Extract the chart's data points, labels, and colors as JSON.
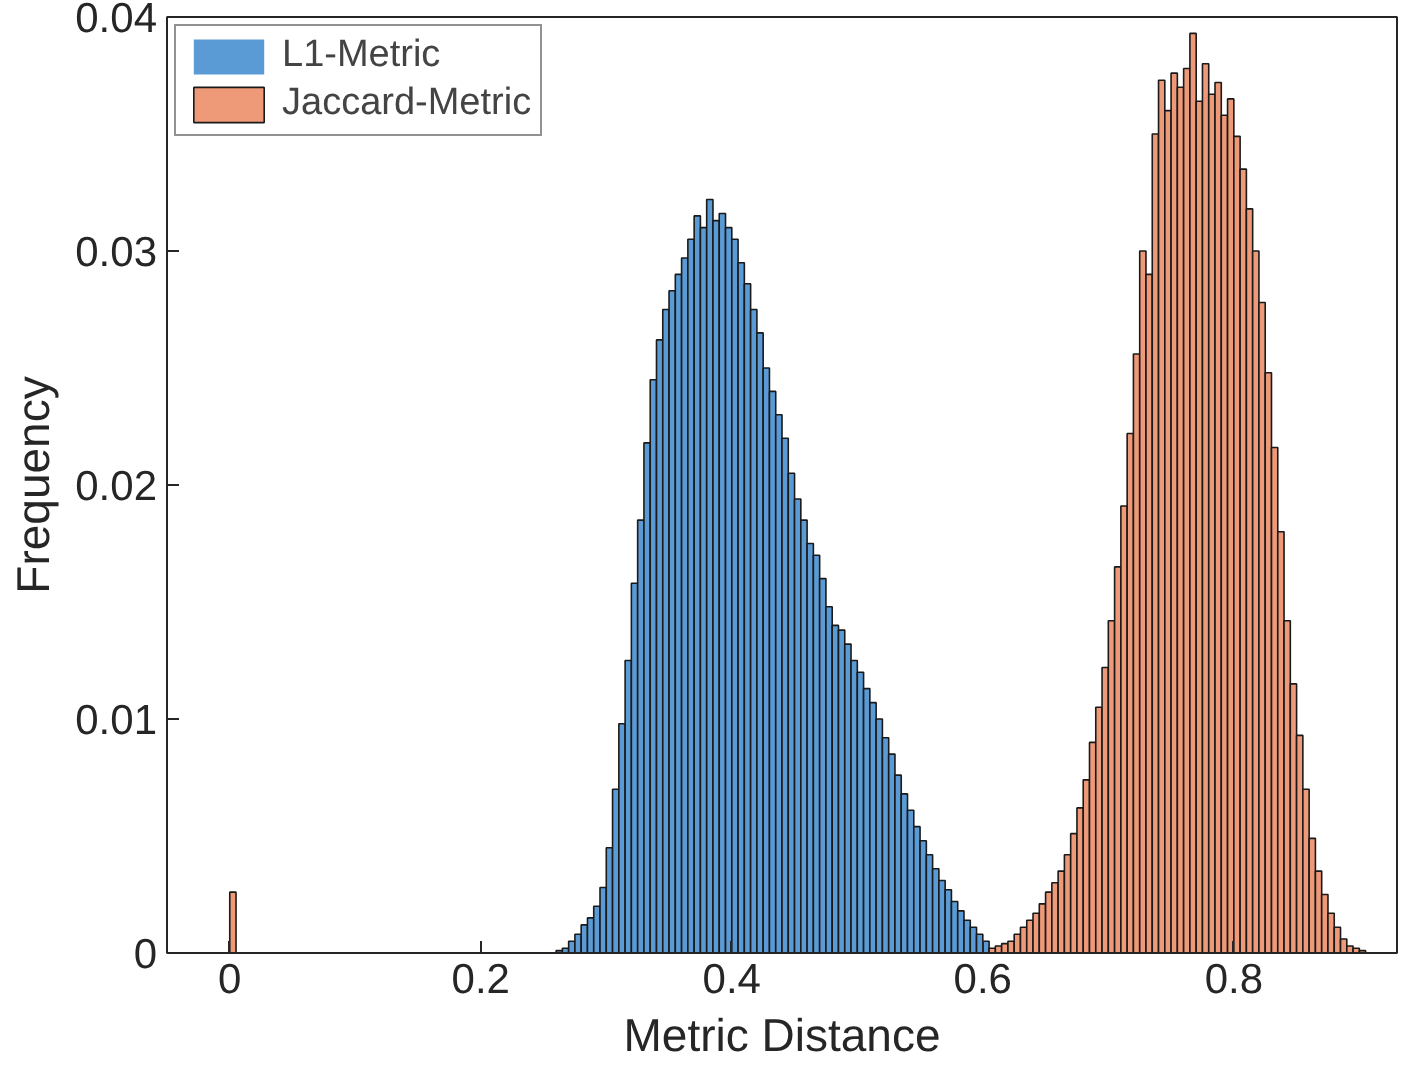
{
  "chart_data": {
    "type": "histogram",
    "xlabel": "Metric Distance",
    "ylabel": "Frequency",
    "xlim": [
      -0.05,
      0.93
    ],
    "ylim": [
      0,
      0.04
    ],
    "xticks": [
      0,
      0.2,
      0.4,
      0.6,
      0.8
    ],
    "yticks": [
      0,
      0.01,
      0.02,
      0.03,
      0.04
    ],
    "grid": false,
    "legend": "top left",
    "bins": [
      0,
      0.005,
      0.01,
      0.015,
      0.02,
      0.025,
      0.03,
      0.035,
      0.04,
      0.045,
      0.05,
      0.055,
      0.06,
      0.065,
      0.07,
      0.075,
      0.08,
      0.085,
      0.09,
      0.095,
      0.1,
      0.105,
      0.11,
      0.115,
      0.12,
      0.125,
      0.13,
      0.135,
      0.14,
      0.145,
      0.15,
      0.155,
      0.16,
      0.165,
      0.17,
      0.175,
      0.18,
      0.185,
      0.19,
      0.195,
      0.2,
      0.205,
      0.21,
      0.215,
      0.22,
      0.225,
      0.23,
      0.235,
      0.24,
      0.245,
      0.25,
      0.255,
      0.26,
      0.265,
      0.27,
      0.275,
      0.28,
      0.285,
      0.29,
      0.295,
      0.3,
      0.305,
      0.31,
      0.315,
      0.32,
      0.325,
      0.33,
      0.335,
      0.34,
      0.345,
      0.35,
      0.355,
      0.36,
      0.365,
      0.37,
      0.375,
      0.38,
      0.385,
      0.39,
      0.395,
      0.4,
      0.405,
      0.41,
      0.415,
      0.42,
      0.425,
      0.43,
      0.435,
      0.44,
      0.445,
      0.45,
      0.455,
      0.46,
      0.465,
      0.47,
      0.475,
      0.48,
      0.485,
      0.49,
      0.495,
      0.5,
      0.505,
      0.51,
      0.515,
      0.52,
      0.525,
      0.53,
      0.535,
      0.54,
      0.545,
      0.55,
      0.555,
      0.56,
      0.565,
      0.57,
      0.575,
      0.58,
      0.585,
      0.59,
      0.595,
      0.6,
      0.605,
      0.61,
      0.615,
      0.62,
      0.625,
      0.63,
      0.635,
      0.64,
      0.645,
      0.65,
      0.655,
      0.66,
      0.665,
      0.67,
      0.675,
      0.68,
      0.685,
      0.69,
      0.695,
      0.7,
      0.705,
      0.71,
      0.715,
      0.72,
      0.725,
      0.73,
      0.735,
      0.74,
      0.745,
      0.75,
      0.755,
      0.76,
      0.765,
      0.77,
      0.775,
      0.78,
      0.785,
      0.79,
      0.795,
      0.8,
      0.805,
      0.81,
      0.815,
      0.82,
      0.825,
      0.83,
      0.835,
      0.84,
      0.845,
      0.85,
      0.855,
      0.86,
      0.865,
      0.87,
      0.875,
      0.88,
      0.885,
      0.89,
      0.895,
      0.9,
      0.905
    ],
    "series": [
      {
        "name": "L1-Metric",
        "color": "#5b9bd5",
        "values": [
          0,
          0,
          0,
          0,
          0,
          0,
          0,
          0,
          0,
          0,
          0,
          0,
          0,
          0,
          0,
          0,
          0,
          0,
          0,
          0,
          0,
          0,
          0,
          0,
          0,
          0,
          0,
          0,
          0,
          0,
          0,
          0,
          0,
          0,
          0,
          0,
          0,
          0,
          0,
          0,
          0,
          0,
          0,
          0,
          0,
          0,
          0,
          0,
          0,
          0,
          0,
          0,
          0.0001,
          0.0002,
          0.0005,
          0.0008,
          0.0012,
          0.0015,
          0.002,
          0.0028,
          0.0045,
          0.007,
          0.0098,
          0.0125,
          0.0158,
          0.0185,
          0.0218,
          0.0245,
          0.0262,
          0.0275,
          0.0283,
          0.029,
          0.0297,
          0.0305,
          0.0315,
          0.031,
          0.0322,
          0.0313,
          0.0316,
          0.031,
          0.0305,
          0.0295,
          0.0286,
          0.0275,
          0.0265,
          0.025,
          0.024,
          0.023,
          0.022,
          0.0205,
          0.0194,
          0.0185,
          0.0175,
          0.017,
          0.016,
          0.0148,
          0.014,
          0.0138,
          0.0132,
          0.0125,
          0.012,
          0.0113,
          0.0107,
          0.01,
          0.0092,
          0.0085,
          0.0076,
          0.0068,
          0.0061,
          0.0054,
          0.0048,
          0.0042,
          0.0036,
          0.0031,
          0.0027,
          0.0022,
          0.0018,
          0.0014,
          0.0011,
          0.0008,
          0.0005,
          null,
          null,
          0,
          0,
          0,
          0,
          0,
          0,
          0,
          0,
          0,
          0,
          0,
          0,
          0,
          0,
          0,
          0,
          0,
          0,
          0,
          0,
          0,
          0,
          0,
          0,
          0,
          0,
          0,
          0,
          0,
          0,
          0,
          0,
          0,
          0,
          0,
          0,
          0,
          0,
          0,
          0,
          0,
          0,
          0,
          0,
          0,
          0,
          0,
          0,
          0,
          0,
          0,
          0,
          0,
          0,
          0,
          0,
          0,
          0
        ]
      },
      {
        "name": "Jaccard-Metric",
        "color": "#ee9a78",
        "values": [
          0.0026,
          0,
          0,
          0,
          0,
          0,
          0,
          0,
          0,
          0,
          0,
          0,
          0,
          0,
          0,
          0,
          0,
          0,
          0,
          0,
          0,
          0,
          0,
          0,
          0,
          0,
          0,
          0,
          0,
          0,
          0,
          0,
          0,
          0,
          0,
          0,
          0,
          0,
          0,
          0,
          0,
          0,
          0,
          0,
          0,
          0,
          0,
          0,
          0,
          0,
          0,
          0,
          0,
          0,
          0,
          0,
          0,
          0,
          0,
          0,
          0,
          0,
          0,
          0,
          0,
          0,
          0,
          0,
          0,
          0,
          0,
          0,
          0,
          0,
          0,
          0,
          0,
          0,
          0,
          0,
          0,
          0,
          0,
          0,
          0,
          0,
          0,
          0,
          0,
          0,
          0,
          0,
          0,
          0,
          0,
          0,
          0,
          0,
          0,
          0,
          0,
          0,
          0,
          0,
          0,
          0,
          0,
          0,
          0,
          0,
          0,
          0,
          0,
          0,
          0,
          0,
          0,
          0,
          0,
          0,
          0,
          0.0002,
          0.0003,
          0.0004,
          0.0005,
          0.0008,
          0.0011,
          0.0014,
          0.0017,
          0.0021,
          0.0026,
          0.003,
          0.0035,
          0.0042,
          0.0051,
          0.0062,
          0.0074,
          0.009,
          0.0105,
          0.0122,
          0.0142,
          0.0165,
          0.0191,
          0.0222,
          0.0256,
          0.03,
          0.029,
          0.035,
          0.0373,
          0.036,
          0.0376,
          0.037,
          0.0378,
          0.0393,
          0.0364,
          0.038,
          0.0367,
          0.0372,
          0.0358,
          0.0365,
          0.0349,
          0.0335,
          0.0318,
          0.03,
          0.0278,
          0.0248,
          0.0216,
          0.018,
          0.0142,
          0.0115,
          0.0093,
          0.007,
          0.0049,
          0.0035,
          0.0025,
          0.0017,
          0.0011,
          0.0006,
          0.0003,
          0.0002,
          0.0001
        ]
      }
    ]
  }
}
